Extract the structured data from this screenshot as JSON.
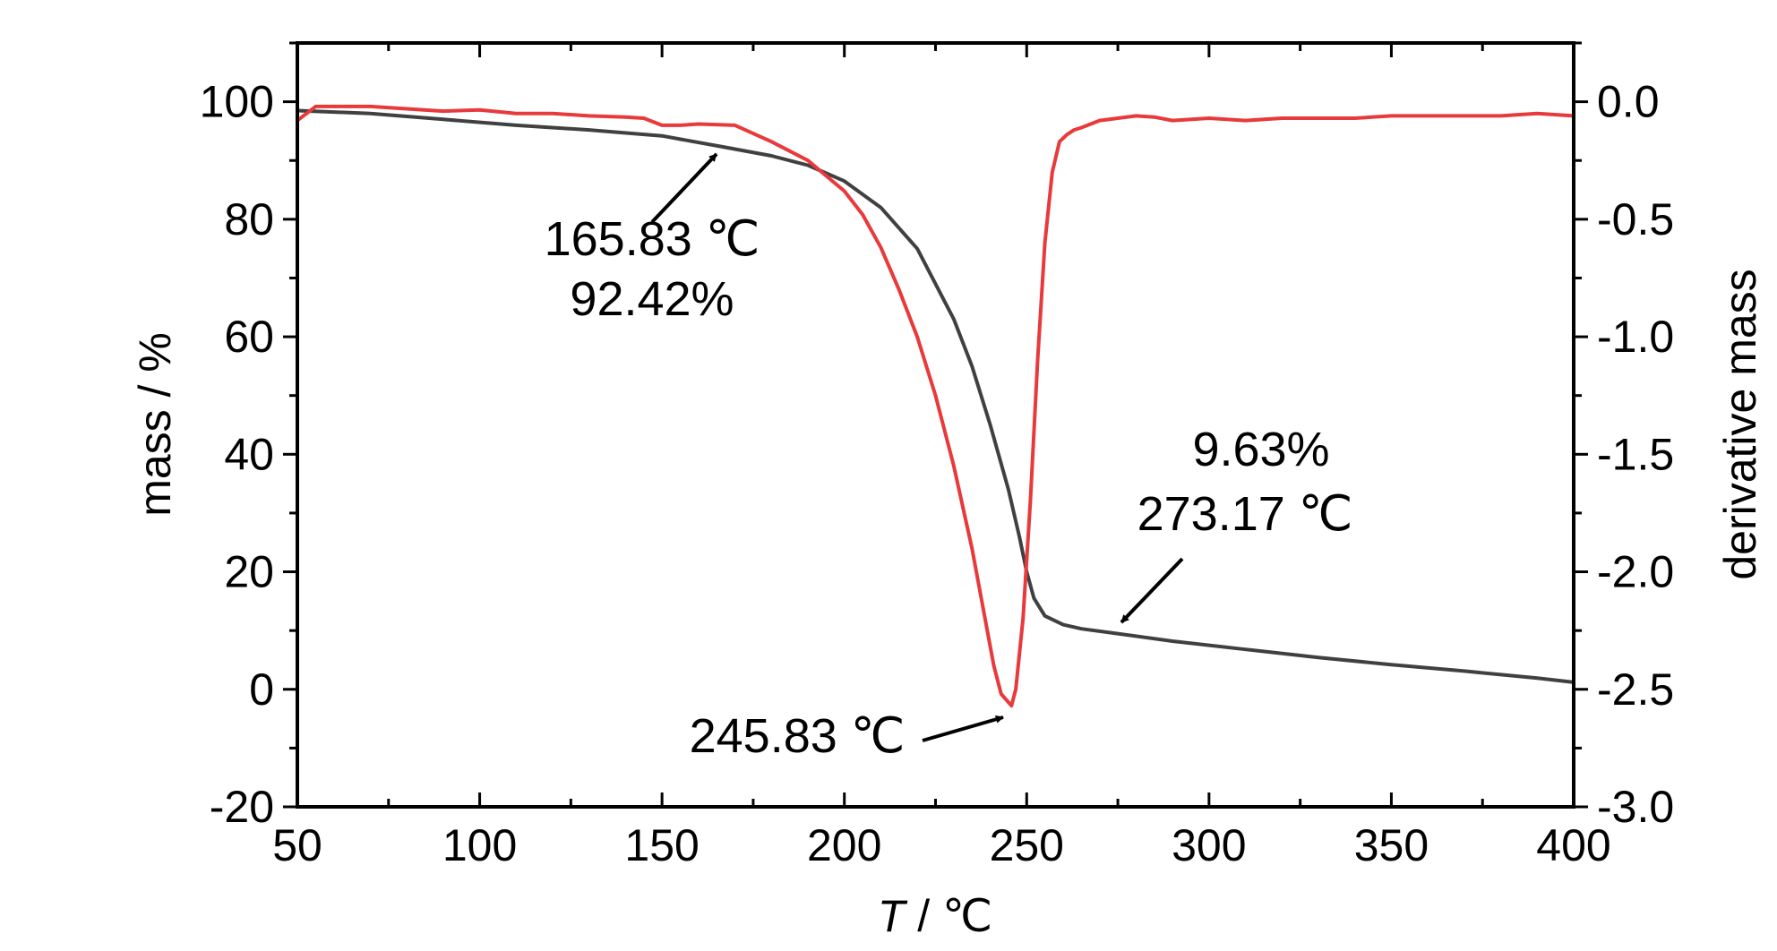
{
  "chart_data": {
    "type": "line",
    "xlabel": "T / ℃",
    "xlabel_italic_part": "T",
    "xlabel_rest": " / ℃",
    "ylabel": "mass / %",
    "y2label": "derivative mass",
    "xlim": [
      50,
      400
    ],
    "ylim": [
      -20,
      110
    ],
    "y2lim": [
      -3.0,
      0.25
    ],
    "xticks": [
      50,
      100,
      150,
      200,
      250,
      300,
      350,
      400
    ],
    "xtick_labels": [
      "50",
      "100",
      "150",
      "200",
      "250",
      "300",
      "350",
      "400"
    ],
    "yticks": [
      -20,
      0,
      20,
      40,
      60,
      80,
      100
    ],
    "ytick_labels": [
      "-20",
      "0",
      "20",
      "40",
      "60",
      "80",
      "100"
    ],
    "y2ticks": [
      -3.0,
      -2.5,
      -2.0,
      -1.5,
      -1.0,
      -0.5,
      0.0
    ],
    "y2tick_labels": [
      "-3.0",
      "-2.5",
      "-2.0",
      "-1.5",
      "-1.0",
      "-0.5",
      "0.0"
    ],
    "grid": false,
    "series": [
      {
        "axis": "left",
        "color": "#404040",
        "x": [
          50,
          70,
          90,
          110,
          130,
          150,
          165.83,
          180,
          190,
          200,
          210,
          220,
          230,
          235,
          240,
          245,
          248,
          250,
          252,
          255,
          260,
          265,
          273.17,
          290,
          310,
          330,
          350,
          370,
          390,
          400
        ],
        "values": [
          98.5,
          98,
          97,
          96,
          95.2,
          94.2,
          92.42,
          90.8,
          89.2,
          86.5,
          82,
          75,
          63,
          55,
          45,
          34,
          26,
          20,
          15.5,
          12.5,
          11,
          10.3,
          9.63,
          8.2,
          6.8,
          5.4,
          4.2,
          3.1,
          1.9,
          1.2
        ]
      },
      {
        "axis": "right",
        "color": "#e8393b",
        "x": [
          50,
          55,
          60,
          70,
          80,
          90,
          100,
          110,
          120,
          130,
          140,
          145,
          150,
          155,
          160,
          170,
          180,
          190,
          200,
          205,
          210,
          215,
          220,
          225,
          230,
          235,
          238,
          241,
          243,
          245.83,
          247,
          249,
          251,
          253,
          255,
          257,
          259,
          261,
          263,
          265,
          270,
          275,
          280,
          285,
          290,
          300,
          310,
          320,
          330,
          340,
          350,
          360,
          370,
          380,
          390,
          400
        ],
        "values": [
          -0.08,
          -0.02,
          -0.02,
          -0.02,
          -0.03,
          -0.04,
          -0.035,
          -0.05,
          -0.05,
          -0.06,
          -0.065,
          -0.07,
          -0.1,
          -0.1,
          -0.095,
          -0.1,
          -0.17,
          -0.25,
          -0.38,
          -0.48,
          -0.62,
          -0.8,
          -1.0,
          -1.25,
          -1.55,
          -1.9,
          -2.15,
          -2.4,
          -2.52,
          -2.57,
          -2.5,
          -2.2,
          -1.7,
          -1.1,
          -0.6,
          -0.3,
          -0.17,
          -0.14,
          -0.12,
          -0.11,
          -0.08,
          -0.07,
          -0.06,
          -0.065,
          -0.08,
          -0.07,
          -0.08,
          -0.07,
          -0.07,
          -0.07,
          -0.06,
          -0.06,
          -0.06,
          -0.06,
          -0.05,
          -0.06
        ]
      }
    ],
    "annotations": [
      {
        "lines": [
          "165.83 ℃",
          "92.42%"
        ]
      },
      {
        "lines": [
          "245.83 ℃"
        ]
      },
      {
        "lines": [
          "9.63%",
          "273.17 ℃"
        ]
      }
    ]
  }
}
